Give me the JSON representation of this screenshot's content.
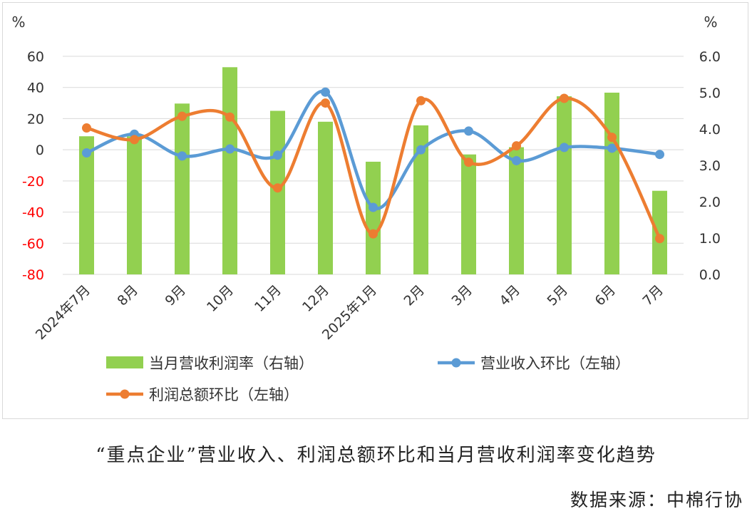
{
  "chart_data": {
    "type": "bar+line",
    "categories": [
      "2024年7月",
      "8月",
      "9月",
      "10月",
      "11月",
      "12月",
      "2025年1月",
      "2月",
      "3月",
      "4月",
      "5月",
      "6月",
      "7月"
    ],
    "left_axis": {
      "unit": "%",
      "range": [
        -80,
        60
      ],
      "ticks": [
        60,
        40,
        20,
        0,
        -20,
        -40,
        -60,
        -80
      ],
      "tick_labels": [
        "60",
        "40",
        "20",
        "0",
        "-20",
        "-40",
        "-60",
        "-80"
      ]
    },
    "right_axis": {
      "unit": "%",
      "range": [
        0,
        6
      ],
      "ticks": [
        6,
        5,
        4,
        3,
        2,
        1,
        0
      ],
      "tick_labels": [
        "6.0",
        "5.0",
        "4.0",
        "3.0",
        "2.0",
        "1.0",
        "0.0"
      ]
    },
    "series": [
      {
        "name": "当月营收利润率（右轴）",
        "type": "bar",
        "axis": "right",
        "color": "#92d050",
        "values": [
          3.8,
          3.8,
          4.7,
          5.7,
          4.5,
          4.2,
          3.1,
          4.1,
          3.3,
          3.5,
          4.9,
          5.0,
          2.3
        ]
      },
      {
        "name": "营业收入环比（左轴）",
        "type": "line",
        "axis": "left",
        "color": "#5b9bd5",
        "values": [
          -2,
          10,
          -4,
          0.5,
          -3.5,
          37,
          -37,
          0,
          12,
          -7,
          1.5,
          1,
          -3
        ]
      },
      {
        "name": "利润总额环比（左轴）",
        "type": "line",
        "axis": "left",
        "color": "#ed7d31",
        "values": [
          14,
          6.5,
          21.5,
          21,
          -24.5,
          30,
          -54,
          31.5,
          -8,
          2.5,
          33,
          8,
          -57
        ]
      }
    ],
    "negative_label_color": "#ff0000"
  },
  "caption": "“重点企业”营业收入、利润总额环比和当月营收利润率变化趋势",
  "source": "数据来源：中棉行协"
}
